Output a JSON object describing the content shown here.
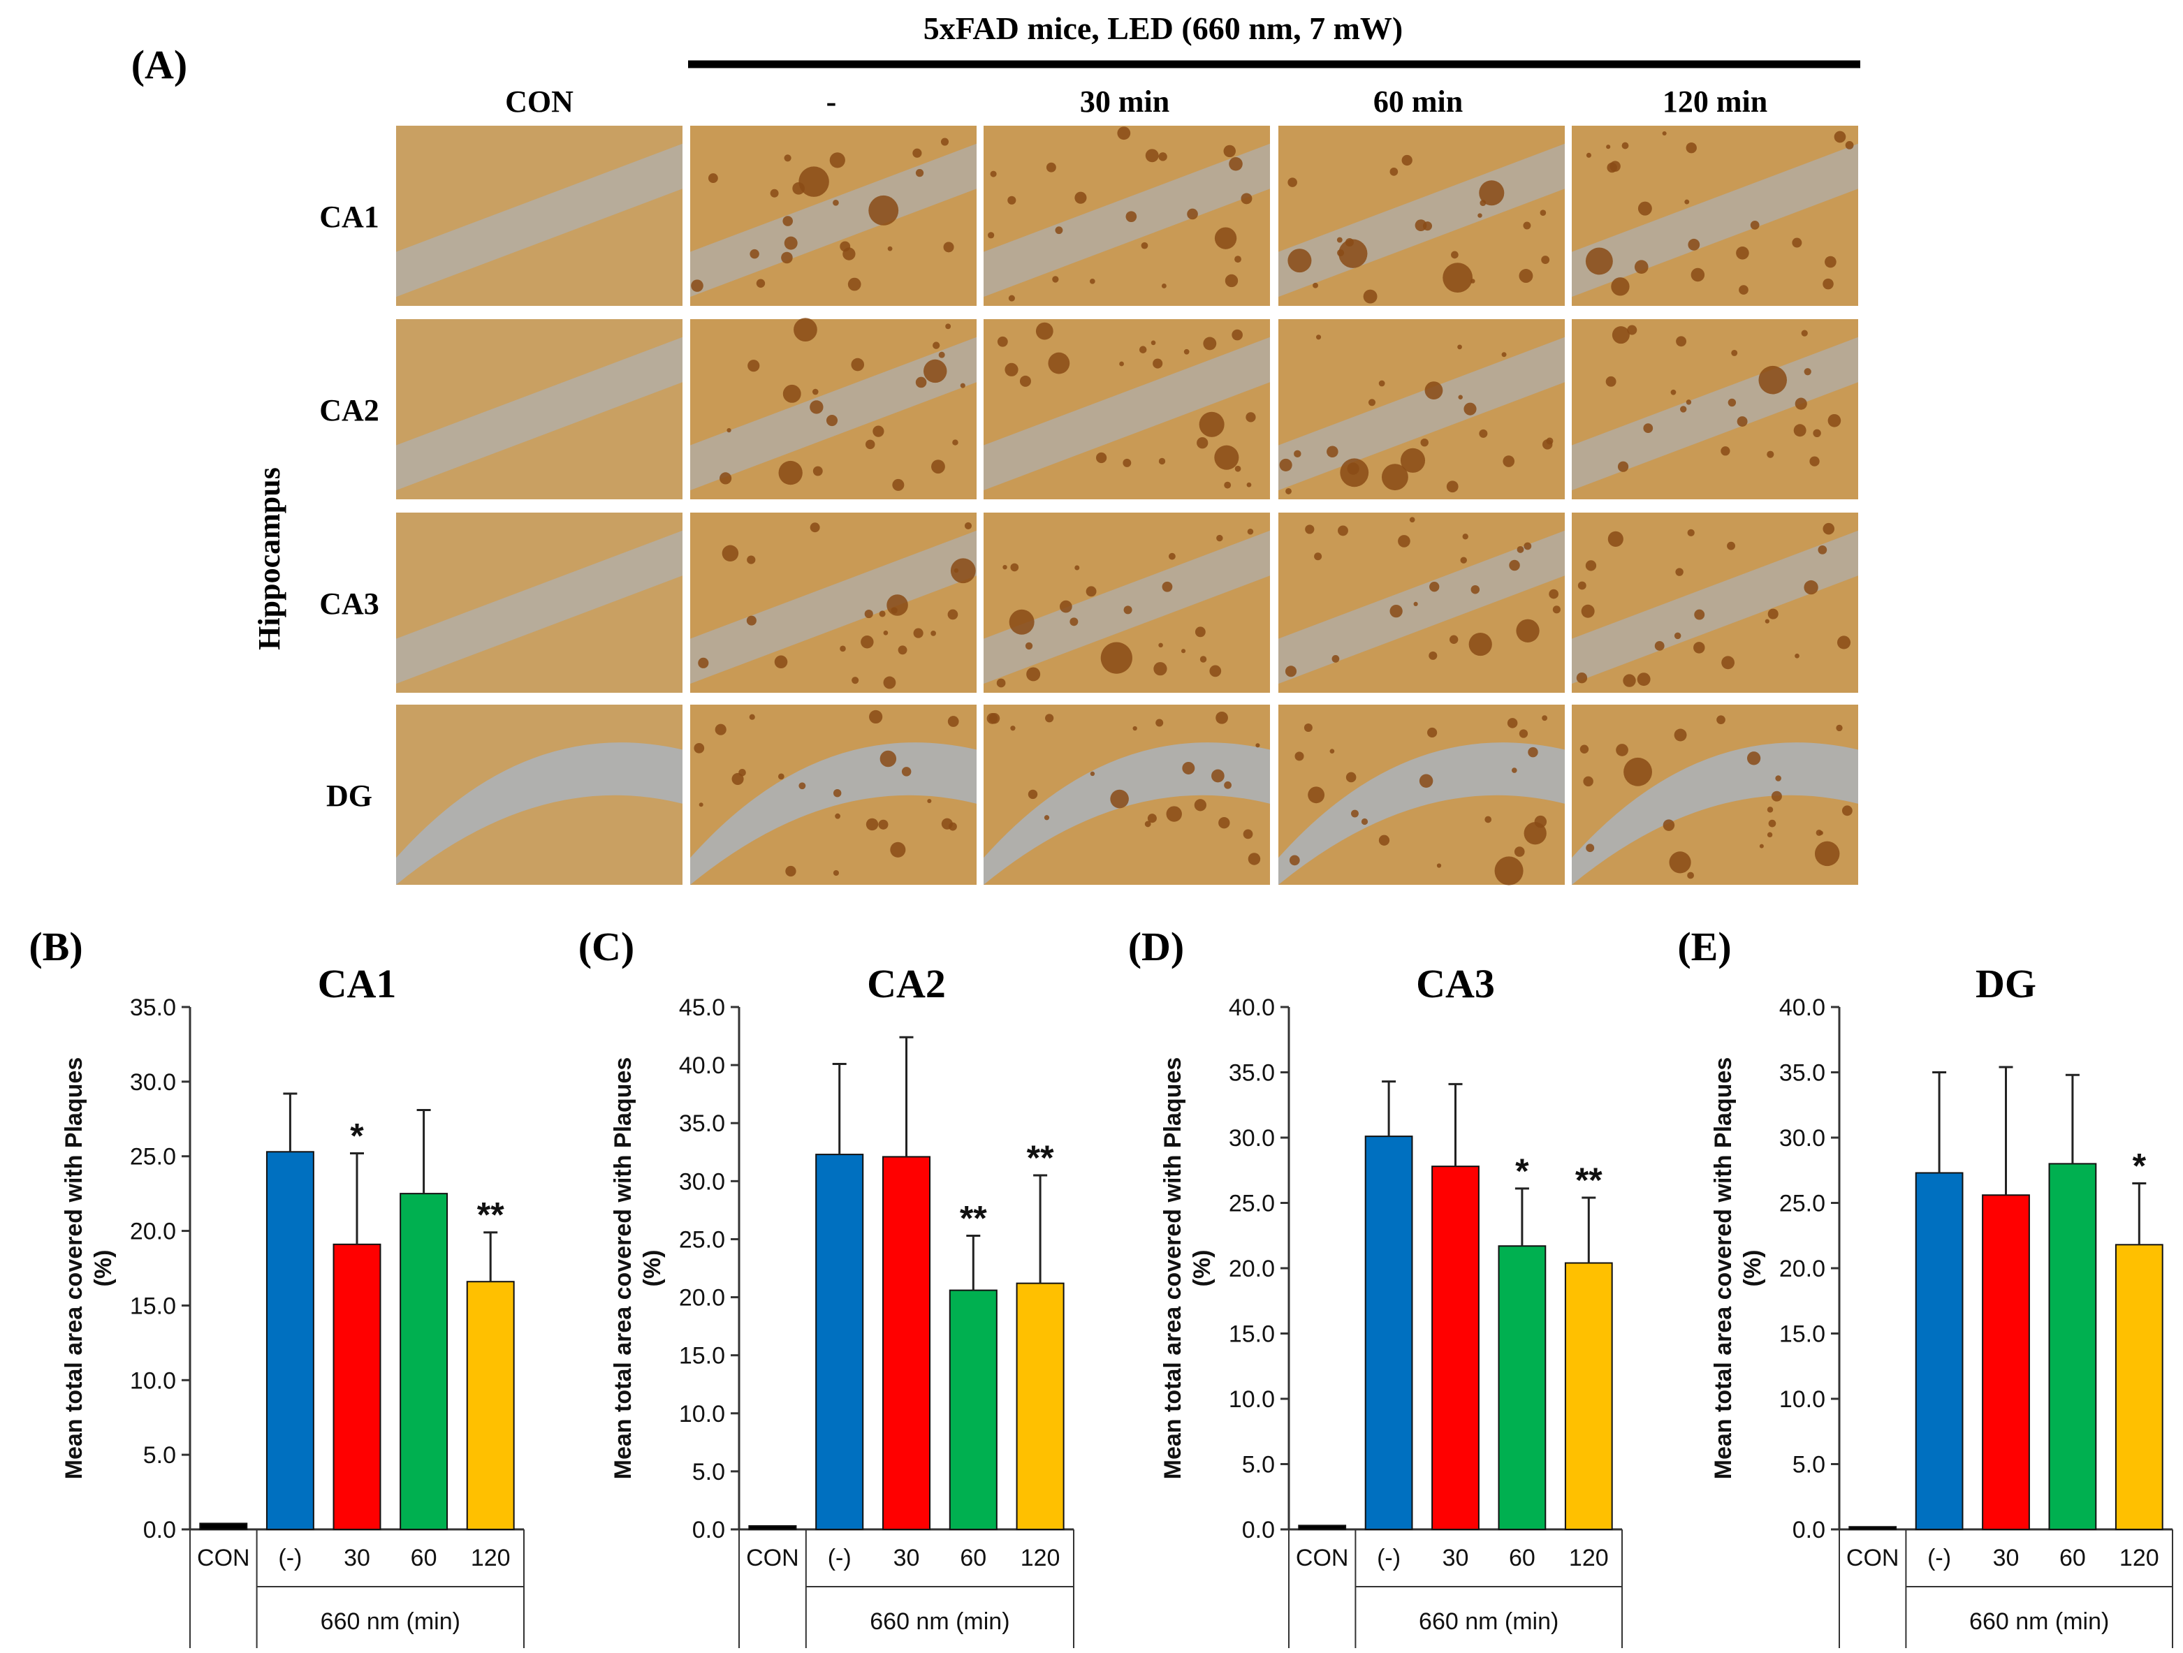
{
  "figure": {
    "panel_a_letter": "(A)",
    "treatment_header": "5xFAD mice, LED (660 nm, 7 mW)",
    "column_labels": [
      "CON",
      "-",
      "30 min",
      "60 min",
      "120 min"
    ],
    "row_labels": [
      "CA1",
      "CA2",
      "CA3",
      "DG"
    ],
    "side_label": "Hippocampus",
    "micrograph_note": "histology micrographs (brown plaque staining on tan tissue with blue nuclei)",
    "colors": {
      "tissue": "#c99a55",
      "plaque": "#8a4b16",
      "nuclei": "#a7b6c8",
      "bar_con": "#000000",
      "bar_none": "#0070c0",
      "bar_30": "#ff0000",
      "bar_60": "#00b050",
      "bar_120": "#ffc000"
    }
  },
  "shared": {
    "ylabel_line1": "Mean total area covered with Plaques",
    "ylabel_line2": "(%)",
    "group_label": "660 nm (min)"
  },
  "chart_data": [
    {
      "type": "bar",
      "panel": "(B)",
      "title": "CA1",
      "categories": [
        "CON",
        "(-)",
        "30",
        "60",
        "120"
      ],
      "values": [
        0.4,
        25.3,
        19.1,
        22.5,
        16.6
      ],
      "errors": [
        0.1,
        3.9,
        6.1,
        5.6,
        3.3
      ],
      "significance": [
        "",
        "",
        "*",
        "",
        "**"
      ],
      "ylim": [
        0,
        35
      ],
      "yticks": [
        "0.0",
        "5.0",
        "10.0",
        "15.0",
        "20.0",
        "25.0",
        "30.0",
        "35.0"
      ],
      "xlabel": "660 nm (min)",
      "ylabel": "Mean total area covered with Plaques (%)"
    },
    {
      "type": "bar",
      "panel": "(C)",
      "title": "CA2",
      "categories": [
        "CON",
        "(-)",
        "30",
        "60",
        "120"
      ],
      "values": [
        0.3,
        32.3,
        32.1,
        20.6,
        21.2
      ],
      "errors": [
        0.1,
        7.8,
        10.3,
        4.7,
        9.3
      ],
      "significance": [
        "",
        "",
        "",
        "**",
        "**"
      ],
      "ylim": [
        0,
        45
      ],
      "yticks": [
        "0.0",
        "5.0",
        "10.0",
        "15.0",
        "20.0",
        "25.0",
        "30.0",
        "35.0",
        "40.0",
        "45.0"
      ],
      "xlabel": "660 nm (min)",
      "ylabel": "Mean total area covered with Plaques (%)"
    },
    {
      "type": "bar",
      "panel": "(D)",
      "title": "CA3",
      "categories": [
        "CON",
        "(-)",
        "30",
        "60",
        "120"
      ],
      "values": [
        0.3,
        30.1,
        27.8,
        21.7,
        20.4
      ],
      "errors": [
        0.1,
        4.2,
        6.3,
        4.4,
        5.0
      ],
      "significance": [
        "",
        "",
        "",
        "*",
        "**"
      ],
      "ylim": [
        0,
        40
      ],
      "yticks": [
        "0.0",
        "5.0",
        "10.0",
        "15.0",
        "20.0",
        "25.0",
        "30.0",
        "35.0",
        "40.0"
      ],
      "xlabel": "660 nm (min)",
      "ylabel": "Mean total area covered with Plaques (%)"
    },
    {
      "type": "bar",
      "panel": "(E)",
      "title": "DG",
      "categories": [
        "CON",
        "(-)",
        "30",
        "60",
        "120"
      ],
      "values": [
        0.2,
        27.3,
        25.6,
        28.0,
        21.8
      ],
      "errors": [
        0.1,
        7.7,
        9.8,
        6.8,
        4.7
      ],
      "significance": [
        "",
        "",
        "",
        "",
        "*"
      ],
      "ylim": [
        0,
        40
      ],
      "yticks": [
        "0.0",
        "5.0",
        "10.0",
        "15.0",
        "20.0",
        "25.0",
        "30.0",
        "35.0",
        "40.0"
      ],
      "xlabel": "660 nm (min)",
      "ylabel": "Mean total area covered with Plaques (%)"
    }
  ]
}
